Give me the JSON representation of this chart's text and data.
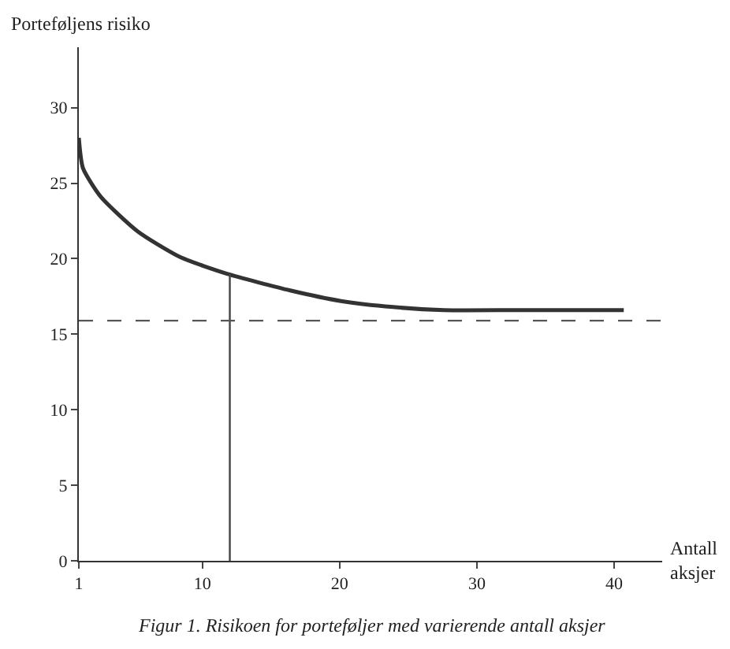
{
  "chart_data": {
    "type": "line",
    "annotations": [
      "Figur 1. Risikoen for porteføljer med varierende antall aksjer"
    ],
    "xlabel": "Antall aksjer",
    "ylabel": "Porteføljens risiko",
    "series": [
      {
        "color": "#333333",
        "x": [
          1,
          1.3,
          2.6,
          5.3,
          8.4,
          11.8,
          16.4,
          20.1,
          23.9,
          27.6,
          33,
          40.7
        ],
        "values": [
          28,
          26,
          24.1,
          21.8,
          20.1,
          19,
          17.9,
          17.2,
          16.8,
          16.6,
          16.6,
          16.6
        ]
      },
      {
        "color": "#444444",
        "x": [
          12,
          12
        ],
        "values": [
          0,
          19
        ]
      }
    ],
    "ref_lines": [
      {
        "axis": "y",
        "value": 15.9,
        "label": null,
        "color": "#555555",
        "line_style": "dashed"
      }
    ],
    "xlim": [
      1,
      43.5
    ],
    "xticks": [
      1,
      10,
      20,
      30,
      40
    ],
    "ylim": [
      0,
      34
    ],
    "yticks": [
      0,
      5,
      10,
      15,
      20,
      25,
      30
    ],
    "marker": "none",
    "line_style": "solid"
  }
}
